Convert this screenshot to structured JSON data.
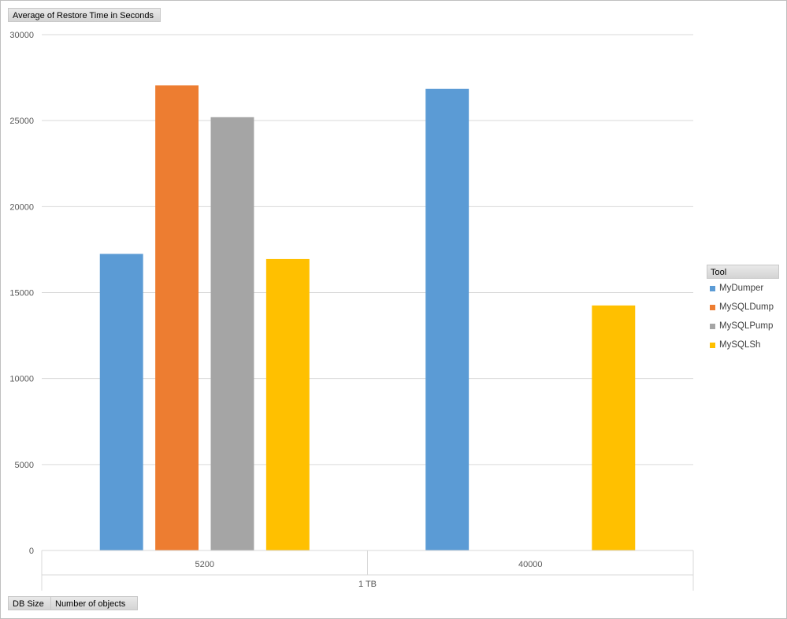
{
  "value_field": "Average of Restore Time in Seconds",
  "axis_fields": [
    "DB Size",
    "Number of objects"
  ],
  "legend": {
    "title": "Tool",
    "items": [
      {
        "label": "MyDumper",
        "color": "#5b9bd5"
      },
      {
        "label": "MySQLDump",
        "color": "#ed7d31"
      },
      {
        "label": "MySQLPump",
        "color": "#a5a5a5"
      },
      {
        "label": "MySQLSh",
        "color": "#ffc000"
      }
    ]
  },
  "chart_data": {
    "type": "bar",
    "title": "",
    "ylabel": "",
    "xlabel": "",
    "ylim": [
      0,
      30000
    ],
    "yticks": [
      "0",
      "5000",
      "10000",
      "15000",
      "20000",
      "25000",
      "30000"
    ],
    "categories": [
      "5200",
      "40000"
    ],
    "outer_category": "1 TB",
    "grid": true,
    "legend_position": "right",
    "series": [
      {
        "name": "MyDumper",
        "color": "#5b9bd5",
        "values": [
          17250,
          26850
        ]
      },
      {
        "name": "MySQLDump",
        "color": "#ed7d31",
        "values": [
          27050,
          null
        ]
      },
      {
        "name": "MySQLPump",
        "color": "#a5a5a5",
        "values": [
          25200,
          null
        ]
      },
      {
        "name": "MySQLSh",
        "color": "#ffc000",
        "values": [
          16950,
          14250
        ]
      }
    ]
  }
}
